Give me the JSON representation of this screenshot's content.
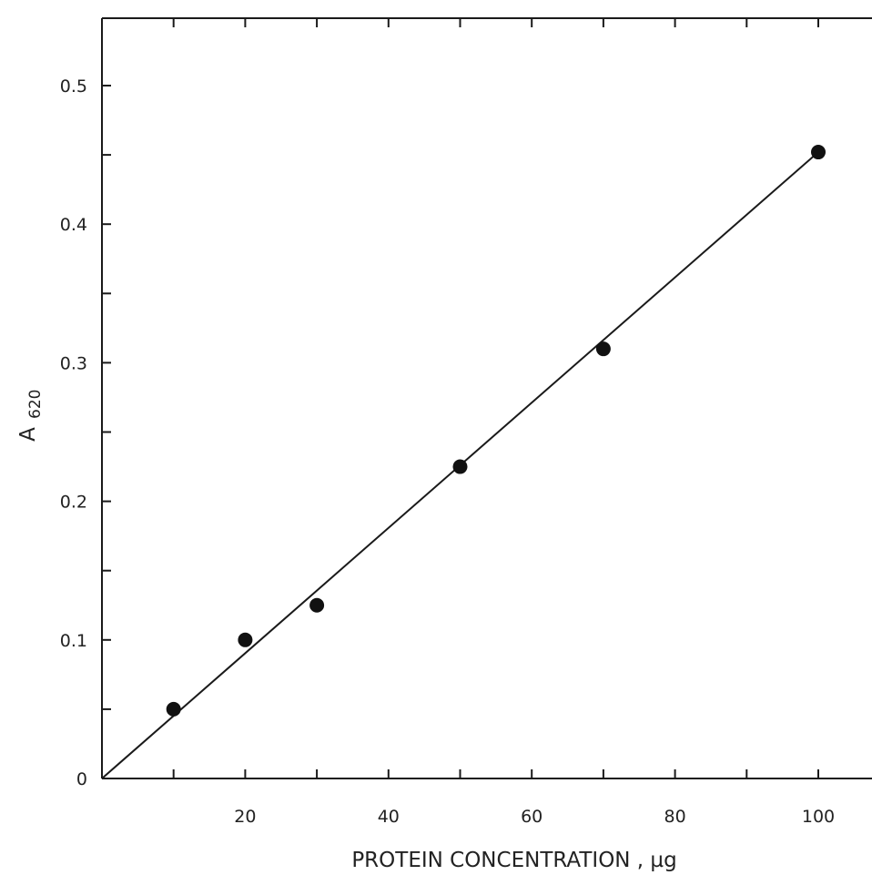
{
  "chart_data": {
    "type": "scatter",
    "xlabel": "PROTEIN   CONCENTRATION , µg",
    "ylabel_main": "A",
    "ylabel_sub": "620",
    "xlim": [
      0,
      110
    ],
    "ylim": [
      0,
      0.55
    ],
    "x_ticks": [
      20,
      40,
      60,
      80,
      100
    ],
    "y_ticks": [
      0,
      0.1,
      0.2,
      0.3,
      0.4,
      0.5
    ],
    "x_tick_labels": [
      "20",
      "40",
      "60",
      "80",
      "100"
    ],
    "y_tick_labels": [
      "0",
      "0.1",
      "0.2",
      "0.3",
      "0.4",
      "0.5"
    ],
    "x_minor_ticks": [
      10,
      30,
      50,
      70,
      90,
      110
    ],
    "y_minor_ticks": [
      0.05,
      0.15,
      0.25,
      0.35,
      0.45
    ],
    "points": [
      {
        "x": 10,
        "y": 0.05
      },
      {
        "x": 20,
        "y": 0.1
      },
      {
        "x": 30,
        "y": 0.125
      },
      {
        "x": 50,
        "y": 0.225
      },
      {
        "x": 70,
        "y": 0.31
      },
      {
        "x": 100,
        "y": 0.452
      }
    ],
    "fit_line": {
      "x_start": 0,
      "y_start": 0,
      "x_end": 100,
      "y_end": 0.452
    },
    "grid": false,
    "legend": "none"
  }
}
